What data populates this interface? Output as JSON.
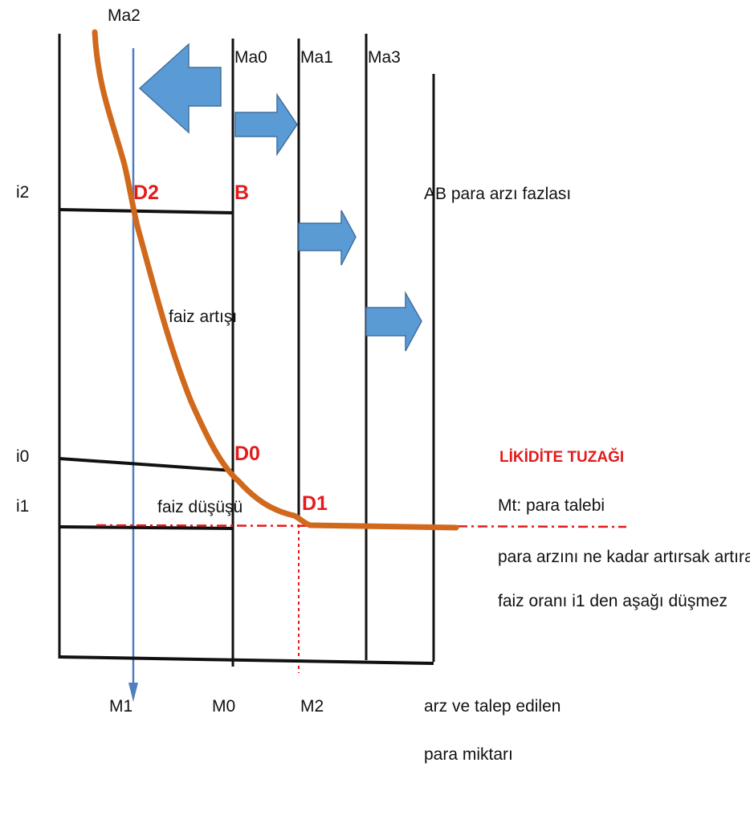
{
  "labels": {
    "ma2": "Ma2",
    "ma0": "Ma0",
    "ma1": "Ma1",
    "ma3": "Ma3",
    "i2": "i2",
    "i0": "i0",
    "i1": "i1",
    "d2": "D2",
    "b": "B",
    "d0": "D0",
    "d1": "D1",
    "ab_note": "AB para arzı fazlası",
    "faiz_artisi": "faiz artışı",
    "faiz_dususu": "faiz düşüşü",
    "likidite": "LİKİDİTE TUZAĞI",
    "mt": "Mt: para talebi",
    "note1": "para arzını ne kadar artırsak artıralım",
    "note2": "faiz oranı i1 den aşağı düşmez",
    "m1": "M1",
    "m0": "M0",
    "m2": "M2",
    "xlabel1": "arz ve talep edilen",
    "xlabel2": "para miktarı"
  },
  "colors": {
    "curve": "#d0691c",
    "arrow_fill": "#5b9bd5",
    "arrow_stroke": "#41719c",
    "point_label": "#e41a1c",
    "axis": "#111111",
    "dashed": "#e41a1c"
  }
}
